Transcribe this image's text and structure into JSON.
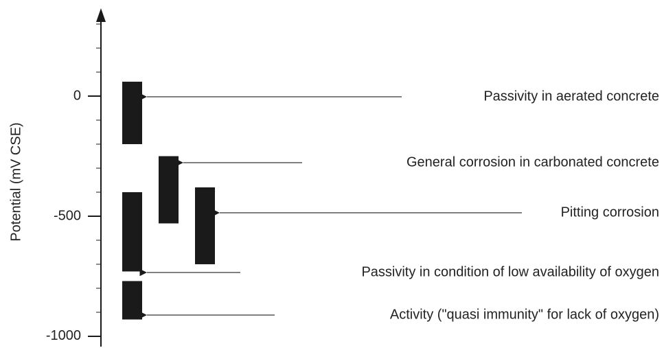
{
  "chart_data": {
    "type": "range-bar",
    "y_label": "Potential (mV CSE)",
    "ylim": [
      -1043,
      343
    ],
    "yticks": [
      -1000,
      -500,
      0
    ],
    "minor_yticks": [
      -900,
      -800,
      -700,
      -600,
      -400,
      -300,
      -200,
      -100,
      100,
      200,
      300
    ],
    "color": "#1a1a1a",
    "series": [
      {
        "name": "Passivity in aerated concrete",
        "low": -200,
        "high": 60
      },
      {
        "name": "General corrosion in carbonated concrete",
        "low": -530,
        "high": -250
      },
      {
        "name": "Pitting corrosion",
        "low": -700,
        "high": -380
      },
      {
        "name": "Passivity in condition of low availability of oxygen",
        "low": -730,
        "high": -400
      },
      {
        "name": "Activity (\"quasi immunity\" for lack of oxygen)",
        "low": -930,
        "high": -770
      }
    ]
  }
}
